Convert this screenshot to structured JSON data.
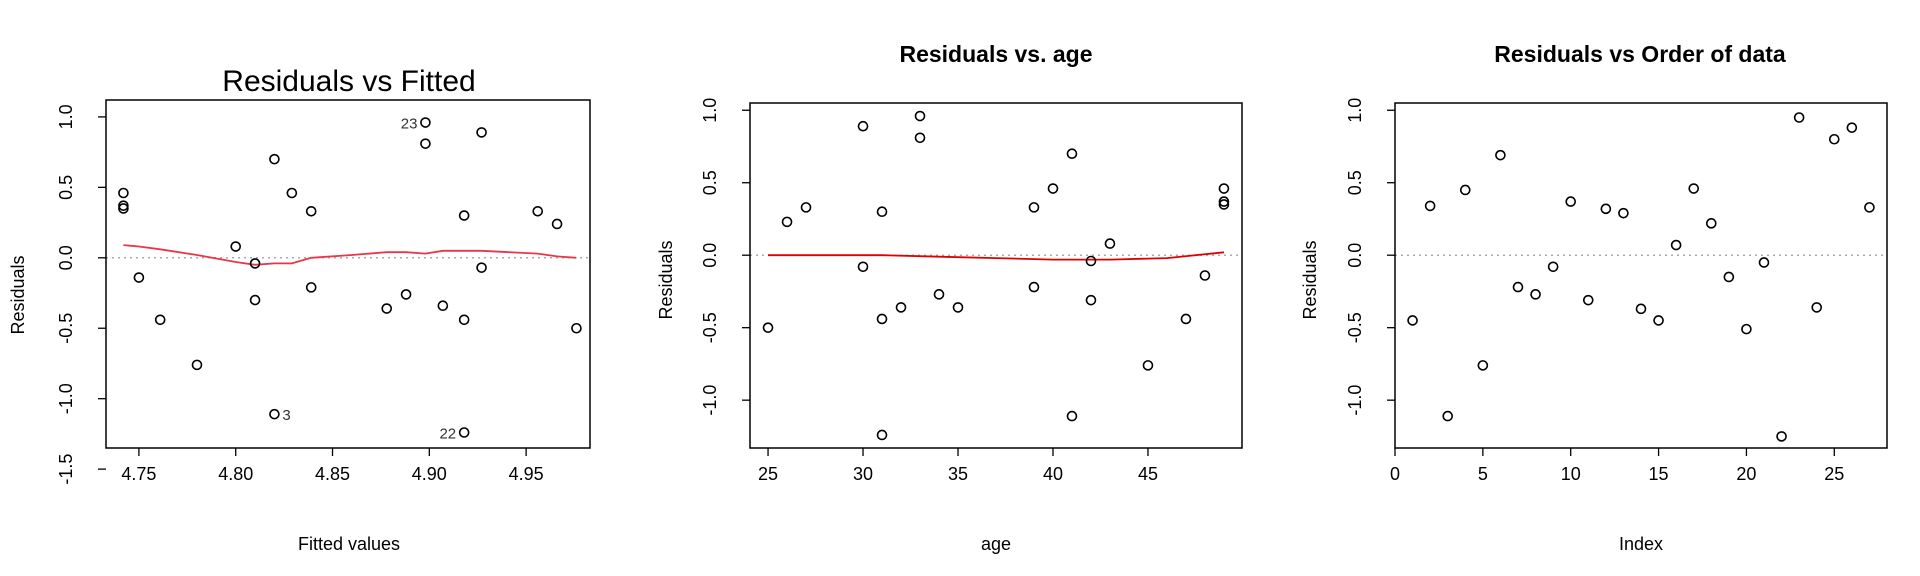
{
  "chart_data": [
    {
      "type": "scatter",
      "title": "Residuals vs Fitted",
      "xlabel": "Fitted values",
      "ylabel": "Residuals",
      "xlim": [
        4.733,
        4.983
      ],
      "ylim": [
        -1.35,
        1.12
      ],
      "xticks": [
        "4.75",
        "4.80",
        "4.85",
        "4.90",
        "4.95"
      ],
      "yticks": [
        "-1.5",
        "-1.0",
        "-0.5",
        "0.0",
        "0.5",
        "1.0"
      ],
      "reference_line": 0,
      "points": [
        {
          "x": 4.742,
          "y": 0.46
        },
        {
          "x": 4.742,
          "y": 0.37
        },
        {
          "x": 4.742,
          "y": 0.35
        },
        {
          "x": 4.75,
          "y": -0.14
        },
        {
          "x": 4.761,
          "y": -0.44
        },
        {
          "x": 4.78,
          "y": -0.76
        },
        {
          "x": 4.8,
          "y": 0.08
        },
        {
          "x": 4.81,
          "y": -0.04
        },
        {
          "x": 4.81,
          "y": -0.3
        },
        {
          "x": 4.82,
          "y": 0.7
        },
        {
          "x": 4.82,
          "y": -1.11,
          "label": "3"
        },
        {
          "x": 4.829,
          "y": 0.46
        },
        {
          "x": 4.839,
          "y": 0.33
        },
        {
          "x": 4.839,
          "y": -0.21
        },
        {
          "x": 4.878,
          "y": -0.36
        },
        {
          "x": 4.888,
          "y": -0.26
        },
        {
          "x": 4.898,
          "y": 0.96,
          "label": "23"
        },
        {
          "x": 4.898,
          "y": 0.81
        },
        {
          "x": 4.907,
          "y": -0.34
        },
        {
          "x": 4.918,
          "y": 0.3
        },
        {
          "x": 4.918,
          "y": -0.44
        },
        {
          "x": 4.918,
          "y": -1.24,
          "label": "22"
        },
        {
          "x": 4.927,
          "y": 0.89
        },
        {
          "x": 4.927,
          "y": -0.07
        },
        {
          "x": 4.956,
          "y": 0.33
        },
        {
          "x": 4.966,
          "y": 0.24
        },
        {
          "x": 4.976,
          "y": -0.5
        }
      ],
      "smooth": {
        "x": [
          4.742,
          4.75,
          4.761,
          4.78,
          4.8,
          4.81,
          4.82,
          4.829,
          4.839,
          4.86,
          4.878,
          4.888,
          4.898,
          4.907,
          4.918,
          4.927,
          4.956,
          4.966,
          4.976
        ],
        "y": [
          0.09,
          0.08,
          0.06,
          0.02,
          -0.03,
          -0.05,
          -0.04,
          -0.04,
          0.0,
          0.02,
          0.04,
          0.04,
          0.03,
          0.05,
          0.05,
          0.05,
          0.03,
          0.01,
          0.0
        ]
      },
      "colors": {
        "smooth": "#e8374a",
        "points": "#000000",
        "reference": "#aaaaaa"
      }
    },
    {
      "type": "scatter",
      "title": "Residuals vs. age",
      "xlabel": "age",
      "ylabel": "Residuals",
      "xlim": [
        24.05,
        49.95
      ],
      "ylim": [
        -1.33,
        1.05
      ],
      "xticks": [
        "25",
        "30",
        "35",
        "40",
        "45"
      ],
      "yticks": [
        "-1.0",
        "-0.5",
        "0.0",
        "0.5",
        "1.0"
      ],
      "reference_line": 0,
      "points": [
        {
          "x": 25,
          "y": -0.5
        },
        {
          "x": 26,
          "y": 0.23
        },
        {
          "x": 27,
          "y": 0.33
        },
        {
          "x": 30,
          "y": 0.89
        },
        {
          "x": 30,
          "y": -0.08
        },
        {
          "x": 31,
          "y": 0.3
        },
        {
          "x": 31,
          "y": -0.44
        },
        {
          "x": 31,
          "y": -1.24
        },
        {
          "x": 32,
          "y": -0.36
        },
        {
          "x": 33,
          "y": 0.96
        },
        {
          "x": 33,
          "y": 0.81
        },
        {
          "x": 34,
          "y": -0.27
        },
        {
          "x": 35,
          "y": -0.36
        },
        {
          "x": 39,
          "y": 0.33
        },
        {
          "x": 39,
          "y": -0.22
        },
        {
          "x": 40,
          "y": 0.46
        },
        {
          "x": 41,
          "y": 0.7
        },
        {
          "x": 41,
          "y": -1.11
        },
        {
          "x": 42,
          "y": -0.04
        },
        {
          "x": 42,
          "y": -0.31
        },
        {
          "x": 43,
          "y": 0.08
        },
        {
          "x": 45,
          "y": -0.76
        },
        {
          "x": 47,
          "y": -0.44
        },
        {
          "x": 48,
          "y": -0.14
        },
        {
          "x": 49,
          "y": 0.46
        },
        {
          "x": 49,
          "y": 0.37
        },
        {
          "x": 49,
          "y": 0.35
        }
      ],
      "smooth": {
        "x": [
          25,
          28,
          31,
          34,
          37,
          40,
          43,
          46,
          49
        ],
        "y": [
          0.0,
          0.0,
          0.0,
          -0.01,
          -0.02,
          -0.03,
          -0.03,
          -0.02,
          0.02
        ]
      },
      "colors": {
        "smooth": "#e00000",
        "points": "#000000",
        "reference": "#aaaaaa"
      }
    },
    {
      "type": "scatter",
      "title": "Residuals vs Order of data",
      "xlabel": "Index",
      "ylabel": "Residuals",
      "xlim": [
        0,
        28
      ],
      "ylim": [
        -1.33,
        1.05
      ],
      "xticks": [
        "0",
        "5",
        "10",
        "15",
        "20",
        "25"
      ],
      "yticks": [
        "-1.0",
        "-0.5",
        "0.0",
        "0.5",
        "1.0"
      ],
      "reference_line": 0,
      "points": [
        {
          "x": 1,
          "y": -0.45
        },
        {
          "x": 2,
          "y": 0.34
        },
        {
          "x": 3,
          "y": -1.11
        },
        {
          "x": 4,
          "y": 0.45
        },
        {
          "x": 5,
          "y": -0.76
        },
        {
          "x": 6,
          "y": 0.69
        },
        {
          "x": 7,
          "y": -0.22
        },
        {
          "x": 8,
          "y": -0.27
        },
        {
          "x": 9,
          "y": -0.08
        },
        {
          "x": 10,
          "y": 0.37
        },
        {
          "x": 11,
          "y": -0.31
        },
        {
          "x": 12,
          "y": 0.32
        },
        {
          "x": 13,
          "y": 0.29
        },
        {
          "x": 14,
          "y": -0.37
        },
        {
          "x": 15,
          "y": -0.45
        },
        {
          "x": 16,
          "y": 0.07
        },
        {
          "x": 17,
          "y": 0.46
        },
        {
          "x": 18,
          "y": 0.22
        },
        {
          "x": 19,
          "y": -0.15
        },
        {
          "x": 20,
          "y": -0.51
        },
        {
          "x": 21,
          "y": -0.05
        },
        {
          "x": 22,
          "y": -1.25
        },
        {
          "x": 23,
          "y": 0.95
        },
        {
          "x": 24,
          "y": -0.36
        },
        {
          "x": 25,
          "y": 0.8
        },
        {
          "x": 26,
          "y": 0.88
        },
        {
          "x": 27,
          "y": 0.33
        }
      ],
      "colors": {
        "points": "#000000",
        "reference": "#aaaaaa"
      }
    }
  ]
}
